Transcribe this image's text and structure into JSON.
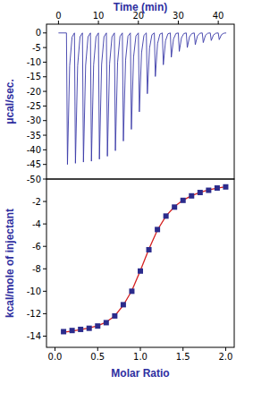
{
  "chart_data": [
    {
      "type": "line",
      "x_label": "Time (min)",
      "y_label": "μcal/sec.",
      "xlim": [
        -3,
        44
      ],
      "xticks": [
        0,
        10,
        20,
        30,
        40
      ],
      "ylim": [
        -50,
        3
      ],
      "yticks": [
        0,
        -5,
        -10,
        -15,
        -20,
        -25,
        -30,
        -35,
        -40,
        -45,
        -50
      ],
      "x": [
        0,
        2,
        2.25,
        2.8,
        3.4,
        4,
        4.25,
        4.8,
        5.4,
        6,
        6.25,
        6.8,
        7.4,
        8,
        8.25,
        8.8,
        9.4,
        10,
        10.25,
        10.8,
        11.4,
        12,
        12.25,
        12.8,
        13.4,
        14,
        14.25,
        14.8,
        15.4,
        16,
        16.25,
        16.8,
        17.4,
        18,
        18.25,
        18.8,
        19.4,
        20,
        20.25,
        20.8,
        21.4,
        22,
        22.25,
        22.8,
        23.4,
        24,
        24.25,
        24.8,
        25.4,
        26,
        26.25,
        26.8,
        27.4,
        28,
        28.25,
        28.8,
        29.4,
        30,
        30.25,
        30.8,
        31.4,
        32,
        32.25,
        32.8,
        33.4,
        34,
        34.25,
        34.8,
        35.4,
        36,
        36.25,
        36.8,
        37.4,
        38,
        38.25,
        38.8,
        39.4,
        40,
        40.25,
        40.8,
        41.4,
        42
      ],
      "series": [
        {
          "color": "#3a3aa8",
          "values": [
            0,
            0,
            -45,
            -11.3,
            -1.4,
            0,
            -44.6,
            -11.2,
            -1.3,
            0,
            -44.2,
            -11.1,
            -1.3,
            0,
            -43.9,
            -11,
            -1.3,
            0,
            -43.2,
            -10.8,
            -1.3,
            0,
            -42.2,
            -10.6,
            -1.3,
            0,
            -40.3,
            -10.1,
            -1.2,
            0,
            -37,
            -9.3,
            -1.1,
            0,
            -33,
            -8.3,
            -1,
            0,
            -27,
            -6.8,
            -0.8,
            0,
            -20.8,
            -5.2,
            -0.6,
            0,
            -14.9,
            -3.7,
            -0.4,
            0,
            -10.9,
            -2.7,
            -0.3,
            0,
            -8.3,
            -2.1,
            -0.2,
            0,
            -6.3,
            -1.6,
            -0.2,
            0,
            -5,
            -1.3,
            -0.2,
            0,
            -4,
            -1,
            -0.1,
            0,
            -3.3,
            -0.8,
            -0.1,
            0,
            -2.6,
            -0.7,
            -0.1,
            0,
            -2.3,
            -0.6,
            -0.1,
            0
          ]
        }
      ]
    },
    {
      "type": "scatter",
      "x_label": "Molar Ratio",
      "y_label": "kcal/mole of injectant",
      "xlim": [
        -0.1,
        2.1
      ],
      "xticks": [
        {
          "value": 0,
          "label": "0.0"
        },
        0.5,
        {
          "value": 1,
          "label": "1.0"
        },
        1.5,
        {
          "value": 2,
          "label": "2.0"
        }
      ],
      "ylim": [
        -15,
        0
      ],
      "yticks": [
        -2,
        -4,
        -6,
        -8,
        -10,
        -12,
        -14
      ],
      "x": [
        0.1,
        0.2,
        0.3,
        0.4,
        0.5,
        0.6,
        0.7,
        0.8,
        0.9,
        1.0,
        1.1,
        1.2,
        1.3,
        1.4,
        1.5,
        1.6,
        1.7,
        1.8,
        1.9,
        2.0
      ],
      "series": [
        {
          "type": "line",
          "color": "#d42020",
          "values": [
            -13.65,
            -13.55,
            -13.42,
            -13.28,
            -13.08,
            -12.75,
            -12.2,
            -11.25,
            -9.95,
            -8.15,
            -6.25,
            -4.55,
            -3.3,
            -2.45,
            -1.88,
            -1.48,
            -1.18,
            -0.97,
            -0.81,
            -0.69
          ]
        },
        {
          "type": "scatter",
          "color": "#2b2b8c",
          "marker": "square",
          "values": [
            -13.6,
            -13.5,
            -13.4,
            -13.3,
            -13.1,
            -12.8,
            -12.2,
            -11.2,
            -10.0,
            -8.2,
            -6.3,
            -4.5,
            -3.3,
            -2.5,
            -1.9,
            -1.5,
            -1.2,
            -1.0,
            -0.8,
            -0.7
          ]
        }
      ]
    }
  ]
}
